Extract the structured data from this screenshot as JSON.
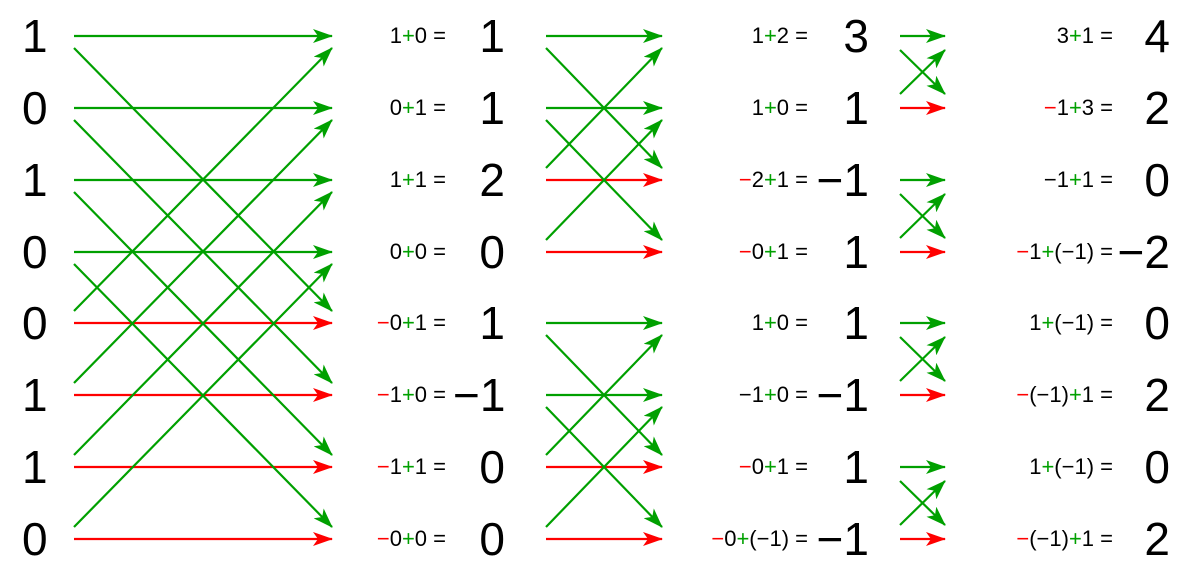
{
  "colors": {
    "add": "#00a000",
    "subtract": "#ff0000",
    "text": "#000000"
  },
  "inputs": [
    "1",
    "0",
    "1",
    "0",
    "0",
    "1",
    "1",
    "0"
  ],
  "stage1": [
    {
      "parts": [
        {
          "t": "1"
        },
        {
          "t": "+",
          "c": "pos"
        },
        {
          "t": "0 ="
        }
      ],
      "result": "1"
    },
    {
      "parts": [
        {
          "t": "0"
        },
        {
          "t": "+",
          "c": "pos"
        },
        {
          "t": "1 ="
        }
      ],
      "result": "1"
    },
    {
      "parts": [
        {
          "t": "1"
        },
        {
          "t": "+",
          "c": "pos"
        },
        {
          "t": "1 ="
        }
      ],
      "result": "2"
    },
    {
      "parts": [
        {
          "t": "0"
        },
        {
          "t": "+",
          "c": "pos"
        },
        {
          "t": "0 ="
        }
      ],
      "result": "0"
    },
    {
      "parts": [
        {
          "t": "−",
          "c": "neg"
        },
        {
          "t": "0"
        },
        {
          "t": "+",
          "c": "pos"
        },
        {
          "t": "1 ="
        }
      ],
      "result": "1"
    },
    {
      "parts": [
        {
          "t": "−",
          "c": "neg"
        },
        {
          "t": "1"
        },
        {
          "t": "+",
          "c": "pos"
        },
        {
          "t": "0 ="
        }
      ],
      "result": "−1"
    },
    {
      "parts": [
        {
          "t": "−",
          "c": "neg"
        },
        {
          "t": "1"
        },
        {
          "t": "+",
          "c": "pos"
        },
        {
          "t": "1 ="
        }
      ],
      "result": "0"
    },
    {
      "parts": [
        {
          "t": "−",
          "c": "neg"
        },
        {
          "t": "0"
        },
        {
          "t": "+",
          "c": "pos"
        },
        {
          "t": "0 ="
        }
      ],
      "result": "0"
    }
  ],
  "stage2": [
    {
      "parts": [
        {
          "t": "1"
        },
        {
          "t": "+",
          "c": "pos"
        },
        {
          "t": "2 ="
        }
      ],
      "result": "3"
    },
    {
      "parts": [
        {
          "t": "1"
        },
        {
          "t": "+",
          "c": "pos"
        },
        {
          "t": "0 ="
        }
      ],
      "result": "1"
    },
    {
      "parts": [
        {
          "t": "−",
          "c": "neg"
        },
        {
          "t": "2"
        },
        {
          "t": "+",
          "c": "pos"
        },
        {
          "t": "1 ="
        }
      ],
      "result": "−1"
    },
    {
      "parts": [
        {
          "t": "−",
          "c": "neg"
        },
        {
          "t": "0"
        },
        {
          "t": "+",
          "c": "pos"
        },
        {
          "t": "1 ="
        }
      ],
      "result": "1"
    },
    {
      "parts": [
        {
          "t": "1"
        },
        {
          "t": "+",
          "c": "pos"
        },
        {
          "t": "0 ="
        }
      ],
      "result": "1"
    },
    {
      "parts": [
        {
          "t": "−1"
        },
        {
          "t": "+",
          "c": "pos"
        },
        {
          "t": "0 ="
        }
      ],
      "result": "−1"
    },
    {
      "parts": [
        {
          "t": "−",
          "c": "neg"
        },
        {
          "t": "0"
        },
        {
          "t": "+",
          "c": "pos"
        },
        {
          "t": "1 ="
        }
      ],
      "result": "1"
    },
    {
      "parts": [
        {
          "t": "−",
          "c": "neg"
        },
        {
          "t": "0"
        },
        {
          "t": "+",
          "c": "pos"
        },
        {
          "t": "(−1) ="
        }
      ],
      "result": "−1"
    }
  ],
  "stage3": [
    {
      "parts": [
        {
          "t": "3"
        },
        {
          "t": "+",
          "c": "pos"
        },
        {
          "t": "1 ="
        }
      ],
      "result": "4"
    },
    {
      "parts": [
        {
          "t": "−",
          "c": "neg"
        },
        {
          "t": "1"
        },
        {
          "t": "+",
          "c": "pos"
        },
        {
          "t": "3 ="
        }
      ],
      "result": "2"
    },
    {
      "parts": [
        {
          "t": "−1"
        },
        {
          "t": "+",
          "c": "pos"
        },
        {
          "t": "1 ="
        }
      ],
      "result": "0"
    },
    {
      "parts": [
        {
          "t": "−",
          "c": "neg"
        },
        {
          "t": "1"
        },
        {
          "t": "+",
          "c": "pos"
        },
        {
          "t": "(−1) ="
        }
      ],
      "result": "−2"
    },
    {
      "parts": [
        {
          "t": "1"
        },
        {
          "t": "+",
          "c": "pos"
        },
        {
          "t": "(−1) ="
        }
      ],
      "result": "0"
    },
    {
      "parts": [
        {
          "t": "−",
          "c": "neg"
        },
        {
          "t": "(−1)"
        },
        {
          "t": "+",
          "c": "pos"
        },
        {
          "t": "1 ="
        }
      ],
      "result": "2"
    },
    {
      "parts": [
        {
          "t": "1"
        },
        {
          "t": "+",
          "c": "pos"
        },
        {
          "t": "(−1) ="
        }
      ],
      "result": "0"
    },
    {
      "parts": [
        {
          "t": "−",
          "c": "neg"
        },
        {
          "t": "(−1)"
        },
        {
          "t": "+",
          "c": "pos"
        },
        {
          "t": "1 ="
        }
      ],
      "result": "2"
    }
  ],
  "stage1_pairs": [
    [
      0,
      4
    ],
    [
      1,
      5
    ],
    [
      2,
      6
    ],
    [
      3,
      7
    ]
  ],
  "stage2_pairs": [
    [
      0,
      2
    ],
    [
      1,
      3
    ],
    [
      4,
      6
    ],
    [
      5,
      7
    ]
  ],
  "stage3_pairs": [
    [
      0,
      1
    ],
    [
      2,
      3
    ],
    [
      4,
      5
    ],
    [
      6,
      7
    ]
  ]
}
